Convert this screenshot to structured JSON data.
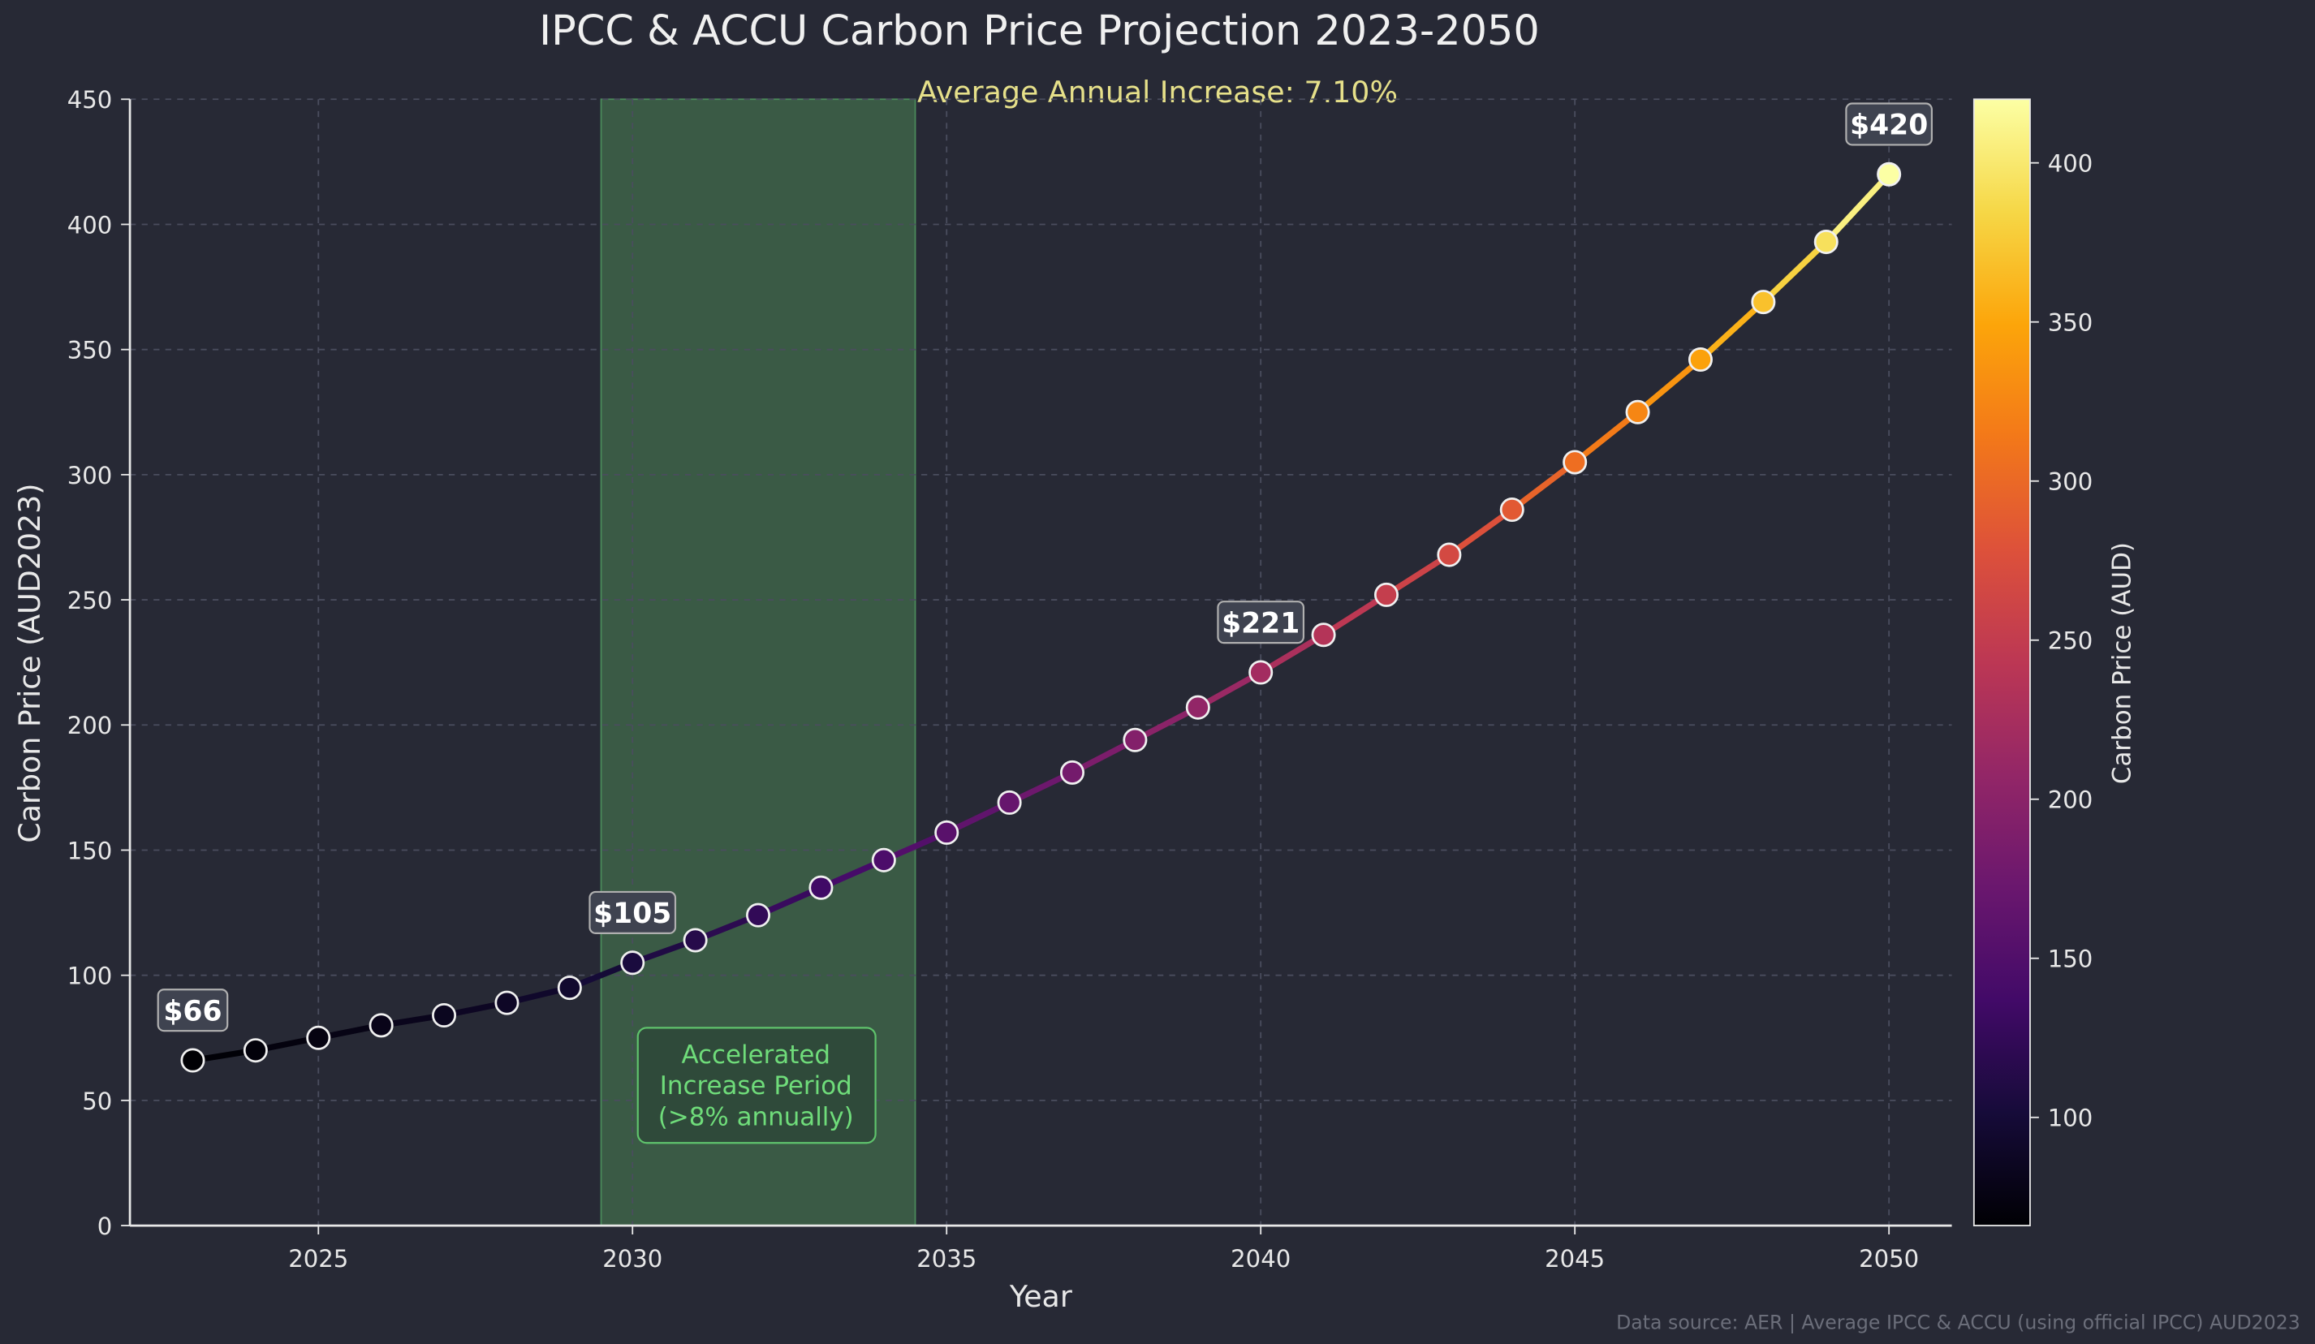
{
  "chart_data": {
    "type": "line",
    "title": "IPCC & ACCU Carbon Price Projection 2023-2050",
    "subtitle": "Average Annual Increase: 7.10%",
    "xlabel": "Year",
    "ylabel": "Carbon Price (AUD2023)",
    "xlim": [
      2022,
      2051
    ],
    "ylim": [
      0,
      450
    ],
    "xticks": [
      2025,
      2030,
      2035,
      2040,
      2045,
      2050
    ],
    "yticks": [
      0,
      50,
      100,
      150,
      200,
      250,
      300,
      350,
      400,
      450
    ],
    "grid": true,
    "x": [
      2023,
      2024,
      2025,
      2026,
      2027,
      2028,
      2029,
      2030,
      2031,
      2032,
      2033,
      2034,
      2035,
      2036,
      2037,
      2038,
      2039,
      2040,
      2041,
      2042,
      2043,
      2044,
      2045,
      2046,
      2047,
      2048,
      2049,
      2050
    ],
    "values": [
      66,
      70,
      75,
      80,
      84,
      89,
      95,
      105,
      114,
      124,
      135,
      146,
      157,
      169,
      181,
      194,
      207,
      221,
      236,
      252,
      268,
      286,
      305,
      325,
      346,
      369,
      393,
      420
    ],
    "point_labels": [
      {
        "x": 2023,
        "text": "$66"
      },
      {
        "x": 2030,
        "text": "$105"
      },
      {
        "x": 2040,
        "text": "$221"
      },
      {
        "x": 2050,
        "text": "$420"
      }
    ],
    "shaded_region": {
      "x_start": 2029.5,
      "x_end": 2034.5,
      "color": "#3a5a45"
    },
    "annotation": "Accelerated\nIncrease Period\n(>8% annually)",
    "colorbar": {
      "label": "Carbon Price (AUD)",
      "range": [
        66,
        420
      ],
      "ticks": [
        100,
        150,
        200,
        250,
        300,
        350,
        400
      ],
      "colormap": "inferno"
    },
    "footer": "Data source: AER | Average IPCC & ACCU (using official IPCC) AUD2023"
  },
  "colors": {
    "background": "#272935",
    "annotation": "#6fdc7a",
    "subtitle": "#e6e08a",
    "text": "#e8e8e8",
    "footer": "#6b6e7a"
  }
}
